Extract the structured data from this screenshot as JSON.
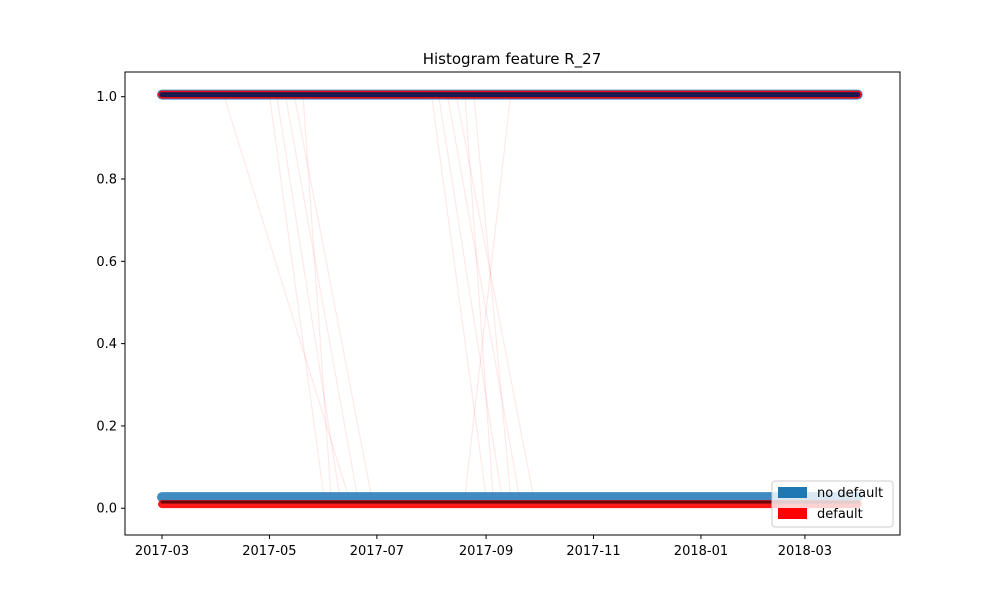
{
  "chart_data": {
    "type": "line",
    "title": "Histogram feature R_27",
    "xlabel": "",
    "ylabel": "",
    "x_axis": {
      "kind": "date",
      "range": [
        "2017-02-08",
        "2018-04-24"
      ],
      "ticks": [
        "2017-03-01",
        "2017-05-01",
        "2017-07-01",
        "2017-09-01",
        "2017-11-01",
        "2018-01-01",
        "2018-03-01"
      ],
      "tick_labels": [
        "2017-03",
        "2017-05",
        "2017-07",
        "2017-09",
        "2017-11",
        "2018-01",
        "2018-03"
      ]
    },
    "y_axis": {
      "range": [
        -0.065,
        1.06
      ],
      "ticks": [
        0.0,
        0.2,
        0.4,
        0.6,
        0.8,
        1.0
      ],
      "tick_labels": [
        "0.0",
        "0.2",
        "0.4",
        "0.6",
        "0.8",
        "1.0"
      ]
    },
    "grid": false,
    "legend": {
      "placement": "lower-right",
      "entries": [
        {
          "label": "no default",
          "color": "#1f77b4"
        },
        {
          "label": "default",
          "color": "#ff0000"
        }
      ]
    },
    "series": [
      {
        "name": "no default",
        "color": "#1f77b4",
        "bands": [
          {
            "x": [
              "2017-03-01",
              "2018-03-31"
            ],
            "y": 1.005
          },
          {
            "x": [
              "2017-03-01",
              "2018-03-31"
            ],
            "y": 0.027
          }
        ]
      },
      {
        "name": "default",
        "color": "#ff0000",
        "bands": [
          {
            "x": [
              "2017-03-01",
              "2018-03-31"
            ],
            "y": 1.005
          },
          {
            "x": [
              "2017-03-01",
              "2018-03-31"
            ],
            "y": 0.01
          }
        ],
        "transitions": [
          {
            "x": [
              "2017-05-01",
              "2017-06-01"
            ],
            "y": [
              1.005,
              0.027
            ]
          },
          {
            "x": [
              "2017-05-05",
              "2017-06-10"
            ],
            "y": [
              1.005,
              0.027
            ]
          },
          {
            "x": [
              "2017-05-10",
              "2017-06-20"
            ],
            "y": [
              1.005,
              0.027
            ]
          },
          {
            "x": [
              "2017-05-15",
              "2017-06-28"
            ],
            "y": [
              1.005,
              0.027
            ]
          },
          {
            "x": [
              "2017-05-20",
              "2017-06-05"
            ],
            "y": [
              1.005,
              0.027
            ]
          },
          {
            "x": [
              "2017-04-05",
              "2017-06-15"
            ],
            "y": [
              1.005,
              0.027
            ]
          },
          {
            "x": [
              "2017-08-01",
              "2017-09-01"
            ],
            "y": [
              1.005,
              0.027
            ]
          },
          {
            "x": [
              "2017-08-05",
              "2017-09-10"
            ],
            "y": [
              1.005,
              0.027
            ]
          },
          {
            "x": [
              "2017-08-10",
              "2017-09-20"
            ],
            "y": [
              1.005,
              0.027
            ]
          },
          {
            "x": [
              "2017-08-15",
              "2017-09-28"
            ],
            "y": [
              1.005,
              0.027
            ]
          },
          {
            "x": [
              "2017-08-20",
              "2017-09-05"
            ],
            "y": [
              1.005,
              0.027
            ]
          },
          {
            "x": [
              "2017-08-25",
              "2017-09-15"
            ],
            "y": [
              1.005,
              0.027
            ]
          },
          {
            "x": [
              "2017-09-15",
              "2017-08-20"
            ],
            "y": [
              1.005,
              0.027
            ]
          }
        ]
      },
      {
        "name": "",
        "color": "#1a1a4e",
        "bands": [
          {
            "x": [
              "2017-03-01",
              "2018-03-31"
            ],
            "y": 1.005
          }
        ]
      }
    ]
  }
}
